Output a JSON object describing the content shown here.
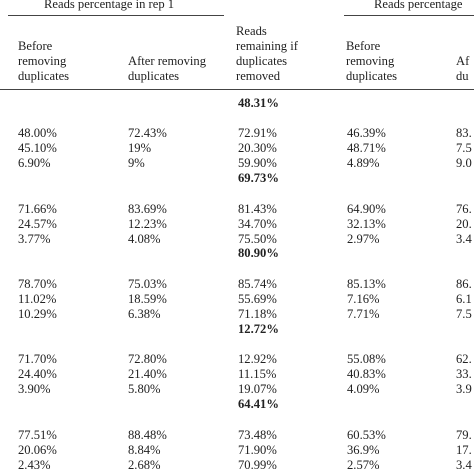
{
  "header": {
    "group_rep1": "Reads percentage in rep 1",
    "group_rep2": "Reads percentage",
    "col_before": [
      "Before",
      "removing",
      "duplicates"
    ],
    "col_after": [
      "After removing",
      "duplicates"
    ],
    "col_remaining": [
      "Reads",
      "remaining if",
      "duplicates",
      "removed"
    ],
    "col_before_rep2": [
      "Before",
      "removing",
      "duplicates"
    ],
    "col_after_rep2_partial": [
      "Af",
      "du"
    ]
  },
  "groups": [
    {
      "summary": "48.31%",
      "rows": [
        [
          "48.00%",
          "72.43%",
          "72.91%",
          "46.39%",
          "83."
        ],
        [
          "45.10%",
          "19%",
          "20.30%",
          "48.71%",
          "7.5"
        ],
        [
          "6.90%",
          "9%",
          "59.90%",
          "4.89%",
          "9.0"
        ]
      ]
    },
    {
      "summary": "69.73%",
      "rows": [
        [
          "71.66%",
          "83.69%",
          "81.43%",
          "64.90%",
          "76."
        ],
        [
          "24.57%",
          "12.23%",
          "34.70%",
          "32.13%",
          "20."
        ],
        [
          "3.77%",
          "4.08%",
          "75.50%",
          "2.97%",
          "3.4"
        ]
      ]
    },
    {
      "summary": "80.90%",
      "rows": [
        [
          "78.70%",
          "75.03%",
          "85.74%",
          "85.13%",
          "86."
        ],
        [
          "11.02%",
          "18.59%",
          "55.69%",
          "7.16%",
          "6.1"
        ],
        [
          "10.29%",
          "6.38%",
          "71.18%",
          "7.71%",
          "7.5"
        ]
      ]
    },
    {
      "summary": "12.72%",
      "rows": [
        [
          "71.70%",
          "72.80%",
          "12.92%",
          "55.08%",
          "62."
        ],
        [
          "24.40%",
          "21.40%",
          "11.15%",
          "40.83%",
          "33."
        ],
        [
          "3.90%",
          "5.80%",
          "19.07%",
          "4.09%",
          "3.9"
        ]
      ]
    },
    {
      "summary": "64.41%",
      "rows": [
        [
          "77.51%",
          "88.48%",
          "73.48%",
          "60.53%",
          "79."
        ],
        [
          "20.06%",
          "8.84%",
          "71.90%",
          "36.9%",
          "17."
        ],
        [
          "2.43%",
          "2.68%",
          "70.99%",
          "2.57%",
          "3.4"
        ]
      ]
    }
  ]
}
